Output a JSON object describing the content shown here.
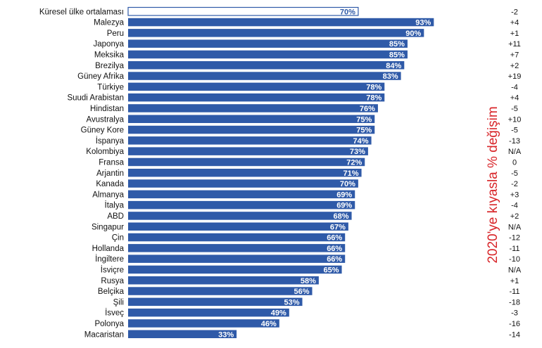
{
  "chart_data": {
    "type": "bar",
    "orientation": "horizontal",
    "categories": [
      "Küresel ülke ortalaması",
      "Malezya",
      "Peru",
      "Japonya",
      "Meksika",
      "Brezilya",
      "Güney Afrika",
      "Türkiye",
      "Suudi Arabistan",
      "Hindistan",
      "Avustralya",
      "Güney Kore",
      "İspanya",
      "Kolombiya",
      "Fransa",
      "Arjantin",
      "Kanada",
      "Almanya",
      "İtalya",
      "ABD",
      "Singapur",
      "Çin",
      "Hollanda",
      "İngiltere",
      "İsviçre",
      "Rusya",
      "Belçika",
      "Şili",
      "İsveç",
      "Polonya",
      "Macaristan"
    ],
    "values": [
      70,
      93,
      90,
      85,
      85,
      84,
      83,
      78,
      78,
      76,
      75,
      75,
      74,
      73,
      72,
      71,
      70,
      69,
      69,
      68,
      67,
      66,
      66,
      66,
      65,
      58,
      56,
      53,
      49,
      46,
      33
    ],
    "value_labels": [
      "70%",
      "93%",
      "90%",
      "85%",
      "85%",
      "84%",
      "83%",
      "78%",
      "78%",
      "76%",
      "75%",
      "75%",
      "74%",
      "73%",
      "72%",
      "71%",
      "70%",
      "69%",
      "69%",
      "68%",
      "67%",
      "66%",
      "66%",
      "66%",
      "65%",
      "58%",
      "56%",
      "53%",
      "49%",
      "46%",
      "33%"
    ],
    "change_labels": [
      "-2",
      "+4",
      "+1",
      "+11",
      "+7",
      "+2",
      "+19",
      "-4",
      "+4",
      "-5",
      "+10",
      "-5",
      "-13",
      "N/A",
      "0",
      "-5",
      "-2",
      "+3",
      "-4",
      "+2",
      "N/A",
      "-12",
      "-11",
      "-10",
      "N/A",
      "+1",
      "-11",
      "-18",
      "-3",
      "-16",
      "-14"
    ],
    "change_axis_label": "2020'ye kıyasla % değişim",
    "highlighted_category": "Küresel ülke ortalaması",
    "xlim": [
      0,
      100
    ],
    "colors": {
      "bar": "#2f5aa8",
      "highlight_fill": "#ffffff",
      "highlight_stroke": "#2f5aa8",
      "change_label": "#d8262a"
    },
    "grid": false,
    "legend": "none"
  }
}
